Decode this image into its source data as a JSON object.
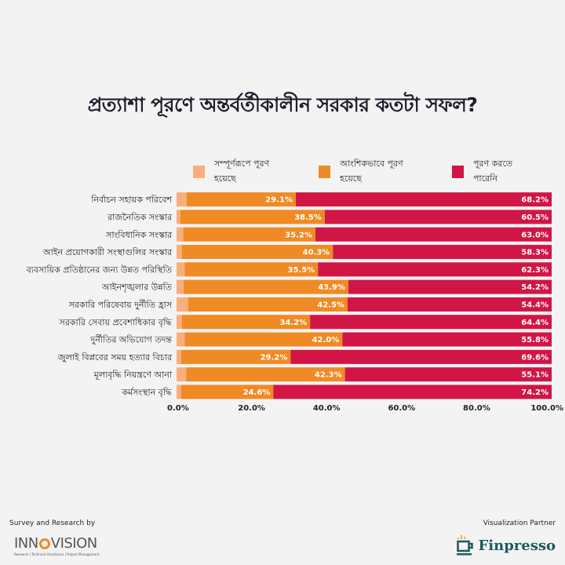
{
  "title": "প্রত্যাশা পূরণে অন্তর্বর্তীকালীন সরকার কতটা সফল?",
  "footer": {
    "left_caption": "Survey and Research by",
    "left_logo_text_a": "INN",
    "left_logo_text_b": "VISION",
    "left_logo_tagline": "Research | Technical Assistance | Project Management",
    "right_caption": "Visualization Partner",
    "right_logo_text": "Finpresso"
  },
  "chart_data": {
    "type": "bar",
    "orientation": "horizontal",
    "stacked": true,
    "title": "প্রত্যাশা পূরণে অন্তর্বর্তীকালীন সরকার কতটা সফল?",
    "xlabel": "",
    "ylabel": "",
    "xlim": [
      0,
      100
    ],
    "x_ticks": [
      "0.0%",
      "20.0%",
      "40.0%",
      "60.0%",
      "80.0%",
      "100.0%"
    ],
    "grid": false,
    "legend_position": "top",
    "categories": [
      "নির্বাচন সহায়ক পরিবেশ",
      "রাজনৈতিক সংস্কার",
      "সাংবিধানিক সংস্কার",
      "আইন প্রয়োগকারী সংস্থাগুলির সংস্কার",
      "ব্যবসায়িক প্রতিষ্ঠানের জন্য উন্নত পরিস্থিতি",
      "আইনশৃঙ্খলার উন্নতি",
      "সরকারি পরিষেবায় দুর্নীতি হ্রাস",
      "সরকারি সেবায় প্রবেশাধিকার বৃদ্ধি",
      "দুর্নীতির অভিযোগ তদন্ত",
      "জুলাই বিপ্লবের সময় হত্যার বিচার",
      "মূল্যবৃদ্ধি নিয়ন্ত্রণে আনা",
      "কর্মসংস্থান বৃদ্ধি"
    ],
    "series": [
      {
        "name": "সম্পূর্ণরূপে পূরণ হয়েছে",
        "color": "#f9ae7c",
        "values": [
          2.7,
          1.0,
          1.8,
          1.4,
          2.2,
          1.9,
          3.1,
          1.4,
          2.2,
          1.2,
          2.6,
          1.2
        ],
        "labels_shown": false
      },
      {
        "name": "আংশিকভাবে পূরণ হয়েছে",
        "color": "#f08a24",
        "values": [
          29.1,
          38.5,
          35.2,
          40.3,
          35.5,
          43.9,
          42.5,
          34.2,
          42.0,
          29.2,
          42.3,
          24.6
        ],
        "labels_shown": true
      },
      {
        "name": "পূরণ করতে পারেনি",
        "color": "#d11646",
        "values": [
          68.2,
          60.5,
          63.0,
          58.3,
          62.3,
          54.2,
          54.4,
          64.4,
          55.8,
          69.6,
          55.1,
          74.2
        ],
        "labels_shown": true
      }
    ]
  }
}
